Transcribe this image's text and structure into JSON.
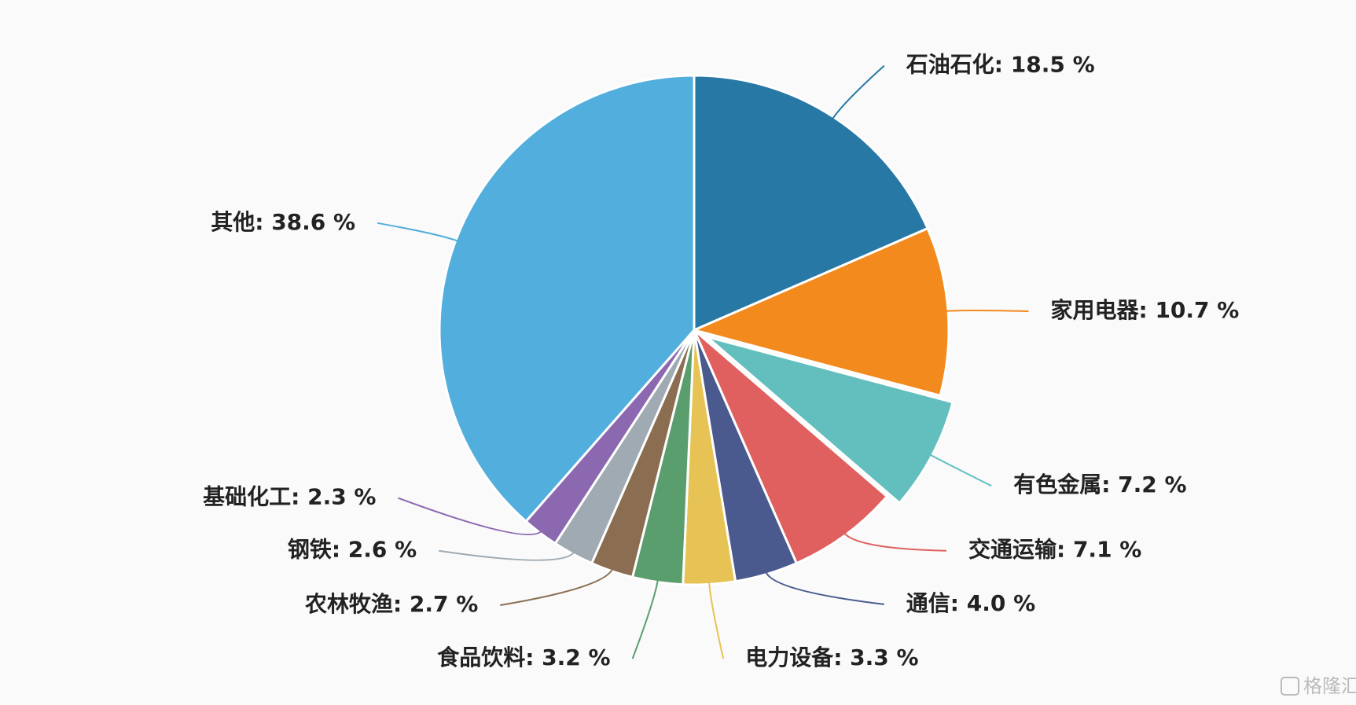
{
  "chart_data": {
    "type": "pie",
    "labels": [
      "石油石化: 18.5 %",
      "家用电器: 10.7 %",
      "有色金属: 7.2 %",
      "交通运输: 7.1 %",
      "通信: 4.0 %",
      "电力设备: 3.3 %",
      "食品饮料: 3.2 %",
      "农林牧渔: 2.7 %",
      "钢铁: 2.6 %",
      "基础化工: 2.3 %",
      "其他: 38.6 %"
    ],
    "values": [
      18.5,
      10.7,
      7.2,
      7.1,
      4.0,
      3.3,
      3.2,
      2.7,
      2.6,
      2.3,
      38.6
    ],
    "colors": [
      "#2878a6",
      "#f28a1e",
      "#62bfbe",
      "#e0605f",
      "#4a5a8e",
      "#e6c354",
      "#5a9e6e",
      "#8b6d52",
      "#9faab2",
      "#8b68b0",
      "#52aedc"
    ],
    "explode": [
      false,
      false,
      true,
      false,
      false,
      false,
      false,
      false,
      false,
      false,
      false
    ],
    "watermark": "格隆汇"
  }
}
